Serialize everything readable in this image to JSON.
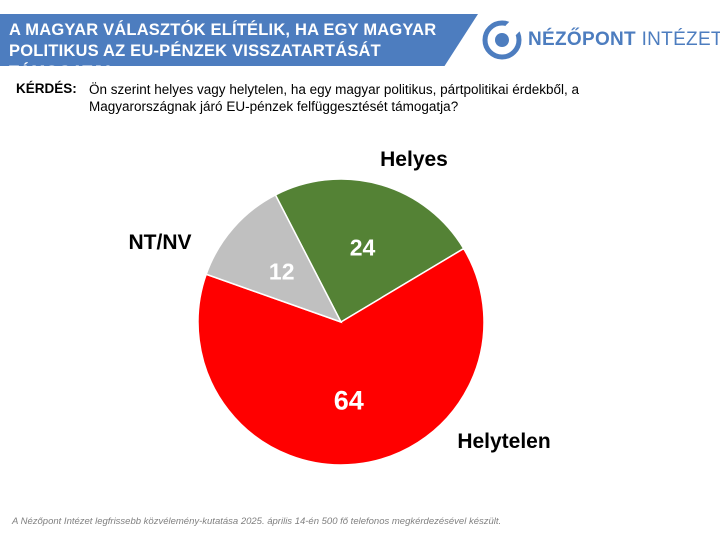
{
  "header": {
    "title": "A MAGYAR VÁLASZTÓK ELÍTÉLIK, HA EGY MAGYAR POLITIKUS AZ EU-PÉNZEK VISSZATARTÁSÁT TÁMOGATJA"
  },
  "logo": {
    "name": "NÉZŐPONT",
    "suffix": "INTÉZET",
    "icon": "nezopont-logo-icon"
  },
  "question": {
    "label": "KÉRDÉS:",
    "text": "Ön szerint helyes vagy helytelen, ha egy magyar politikus, pártpolitikai érdekből, a Magyarországnak járó EU-pénzek felfüggesztését támogatja?"
  },
  "chart_data": {
    "type": "pie",
    "title": "",
    "slices": [
      {
        "label": "Helyes",
        "value": 24,
        "color": "#548235"
      },
      {
        "label": "Helytelen",
        "value": 64,
        "color": "#ff0000"
      },
      {
        "label": "NT/NV",
        "value": 12,
        "color": "#c0c0c0"
      }
    ]
  },
  "footnote": "A Nézőpont Intézet legfrissebb közvélemény-kutatása 2025. április 14-én 500 fő telefonos megkérdezésével készült."
}
